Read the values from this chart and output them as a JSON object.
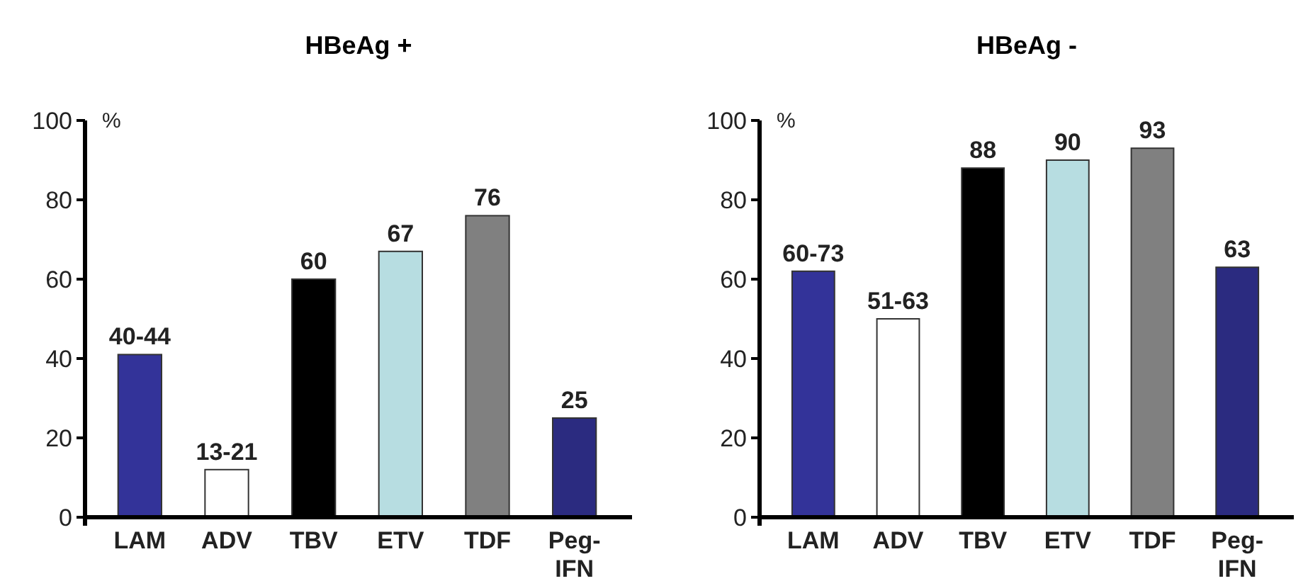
{
  "chart_data": [
    {
      "type": "bar",
      "title": "HBeAg +",
      "ylabel": "%",
      "categories": [
        "LAM",
        "ADV",
        "TBV",
        "ETV",
        "TDF",
        "Peg-IFN"
      ],
      "values": [
        41,
        12,
        60,
        67,
        76,
        25
      ],
      "colors": [
        "#333399",
        "#ffffff",
        "#000000",
        "#b7dde1",
        "#808080",
        "#2b2b80"
      ],
      "value_labels": [
        "40-44",
        "13-21",
        "60",
        "67",
        "76",
        "25"
      ],
      "ylim": [
        0,
        100
      ],
      "yticks": [
        0,
        20,
        40,
        60,
        80,
        100
      ],
      "grid": false
    },
    {
      "type": "bar",
      "title": "HBeAg -",
      "ylabel": "%",
      "categories": [
        "LAM",
        "ADV",
        "TBV",
        "ETV",
        "TDF",
        "Peg-IFN"
      ],
      "values": [
        62,
        50,
        88,
        90,
        93,
        63
      ],
      "colors": [
        "#333399",
        "#ffffff",
        "#000000",
        "#b7dde1",
        "#808080",
        "#2b2b80"
      ],
      "value_labels": [
        "60-73",
        "51-63",
        "88",
        "90",
        "93",
        "63"
      ],
      "ylim": [
        0,
        100
      ],
      "yticks": [
        0,
        20,
        40,
        60,
        80,
        100
      ],
      "grid": false
    }
  ]
}
